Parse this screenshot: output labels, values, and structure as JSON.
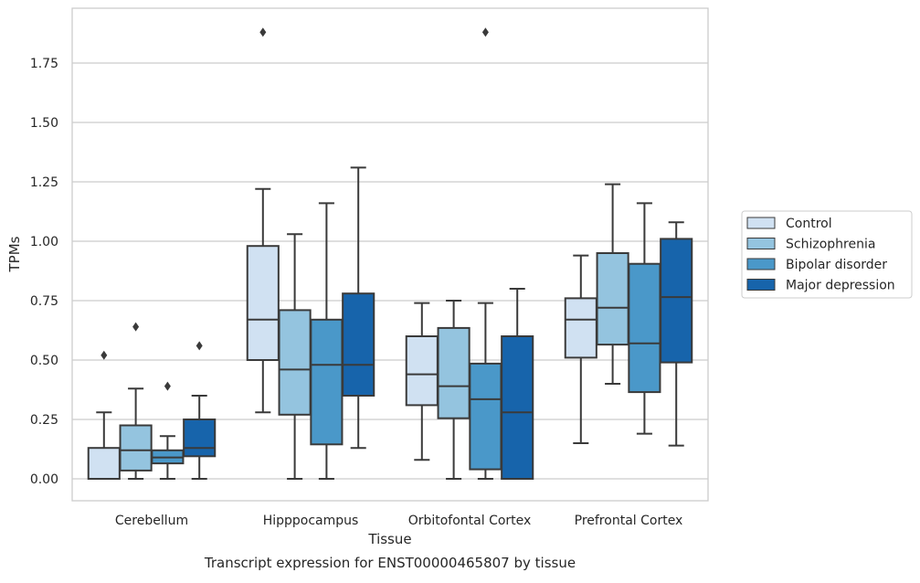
{
  "chart_data": {
    "type": "box",
    "title": "",
    "caption": "Transcript expression for ENST00000465807 by tissue",
    "xlabel": "Tissue",
    "ylabel": "TPMs",
    "ylim": [
      -0.09,
      1.98
    ],
    "yticks": [
      "0.00",
      "0.25",
      "0.50",
      "0.75",
      "1.00",
      "1.25",
      "1.50",
      "1.75"
    ],
    "ytick_values": [
      0,
      0.25,
      0.5,
      0.75,
      1.0,
      1.25,
      1.5,
      1.75
    ],
    "grid": "horizontal",
    "legend_position": "right",
    "categories": [
      "Cerebellum",
      "Hipppocampus",
      "Orbitofontal Cortex",
      "Prefrontal Cortex"
    ],
    "series": [
      {
        "name": "Control",
        "color": "#d0e1f2",
        "boxes": [
          {
            "whislo": 0.0,
            "q1": 0.0,
            "med": 0.0,
            "q3": 0.13,
            "whishi": 0.28,
            "fliers": [
              0.52
            ]
          },
          {
            "whislo": 0.28,
            "q1": 0.5,
            "med": 0.67,
            "q3": 0.98,
            "whishi": 1.22,
            "fliers": [
              1.88
            ]
          },
          {
            "whislo": 0.08,
            "q1": 0.31,
            "med": 0.44,
            "q3": 0.6,
            "whishi": 0.74,
            "fliers": []
          },
          {
            "whislo": 0.15,
            "q1": 0.51,
            "med": 0.67,
            "q3": 0.76,
            "whishi": 0.94,
            "fliers": []
          }
        ]
      },
      {
        "name": "Schizophrenia",
        "color": "#94c4df",
        "boxes": [
          {
            "whislo": 0.0,
            "q1": 0.035,
            "med": 0.12,
            "q3": 0.225,
            "whishi": 0.38,
            "fliers": [
              0.64
            ]
          },
          {
            "whislo": 0.0,
            "q1": 0.27,
            "med": 0.46,
            "q3": 0.71,
            "whishi": 1.03,
            "fliers": []
          },
          {
            "whislo": 0.0,
            "q1": 0.255,
            "med": 0.39,
            "q3": 0.635,
            "whishi": 0.75,
            "fliers": []
          },
          {
            "whislo": 0.4,
            "q1": 0.565,
            "med": 0.72,
            "q3": 0.95,
            "whishi": 1.24,
            "fliers": []
          }
        ]
      },
      {
        "name": "Bipolar disorder",
        "color": "#4a98c9",
        "boxes": [
          {
            "whislo": 0.0,
            "q1": 0.065,
            "med": 0.09,
            "q3": 0.12,
            "whishi": 0.18,
            "fliers": [
              0.39
            ]
          },
          {
            "whislo": 0.0,
            "q1": 0.145,
            "med": 0.48,
            "q3": 0.67,
            "whishi": 1.16,
            "fliers": []
          },
          {
            "whislo": 0.0,
            "q1": 0.04,
            "med": 0.335,
            "q3": 0.485,
            "whishi": 0.74,
            "fliers": [
              1.88
            ]
          },
          {
            "whislo": 0.19,
            "q1": 0.365,
            "med": 0.57,
            "q3": 0.905,
            "whishi": 1.16,
            "fliers": []
          }
        ]
      },
      {
        "name": "Major depression",
        "color": "#1764ab",
        "boxes": [
          {
            "whislo": 0.0,
            "q1": 0.095,
            "med": 0.13,
            "q3": 0.25,
            "whishi": 0.35,
            "fliers": [
              0.56
            ]
          },
          {
            "whislo": 0.13,
            "q1": 0.35,
            "med": 0.48,
            "q3": 0.78,
            "whishi": 1.31,
            "fliers": []
          },
          {
            "whislo": 0.0,
            "q1": 0.0,
            "med": 0.28,
            "q3": 0.6,
            "whishi": 0.8,
            "fliers": []
          },
          {
            "whislo": 0.14,
            "q1": 0.49,
            "med": 0.765,
            "q3": 1.01,
            "whishi": 1.08,
            "fliers": []
          }
        ]
      }
    ],
    "colors": {
      "line": "#3a3a3a",
      "grid": "#cccccc",
      "axis": "#cccccc"
    }
  }
}
